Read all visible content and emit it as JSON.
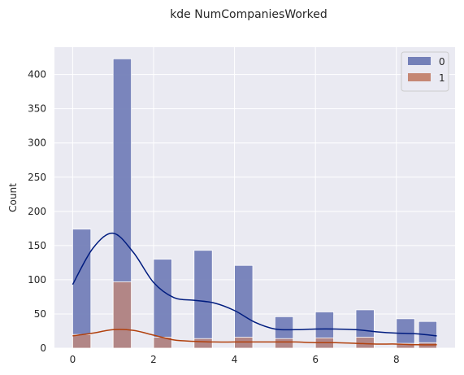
{
  "chart_data": {
    "type": "bar",
    "title": "kde NumCompaniesWorked",
    "xlabel": "",
    "ylabel": "Count",
    "xlim": [
      -0.45,
      9.45
    ],
    "ylim": [
      0,
      440
    ],
    "x_ticks": [
      0,
      2,
      4,
      6,
      8
    ],
    "y_ticks": [
      0,
      50,
      100,
      150,
      200,
      250,
      300,
      350,
      400
    ],
    "bin_width": 0.45,
    "bin_starts": [
      0,
      1,
      2,
      3,
      4,
      5,
      6,
      7,
      8,
      8.55
    ],
    "grid": true,
    "legend_position": "top-right",
    "series": [
      {
        "name": "0",
        "color": "#7480b8",
        "line_color": "#001c7f",
        "values": [
          174,
          423,
          130,
          143,
          121,
          46,
          53,
          56,
          43,
          39
        ],
        "kde": {
          "x": [
            0,
            0.5,
            1,
            1.5,
            2,
            2.5,
            3,
            3.5,
            4,
            4.5,
            5,
            5.5,
            6,
            6.5,
            7,
            7.5,
            8,
            8.5,
            9
          ],
          "y": [
            93,
            146,
            168,
            140,
            96,
            74,
            70,
            66,
            55,
            38,
            28,
            27,
            28,
            28,
            27,
            24,
            22,
            21,
            18
          ]
        }
      },
      {
        "name": "1",
        "color": "#c58774",
        "line_color": "#b1400d",
        "values": [
          20,
          97,
          16,
          14,
          16,
          14,
          15,
          16,
          7,
          8
        ],
        "kde": {
          "x": [
            0,
            0.5,
            1,
            1.5,
            2,
            2.5,
            3,
            3.5,
            4,
            4.5,
            5,
            5.5,
            6,
            6.5,
            7,
            7.5,
            8,
            8.5,
            9
          ],
          "y": [
            18,
            22,
            27,
            26,
            19,
            12,
            10,
            9,
            9,
            9,
            9,
            9,
            8,
            8,
            7,
            6,
            6,
            5,
            5
          ]
        }
      }
    ]
  }
}
